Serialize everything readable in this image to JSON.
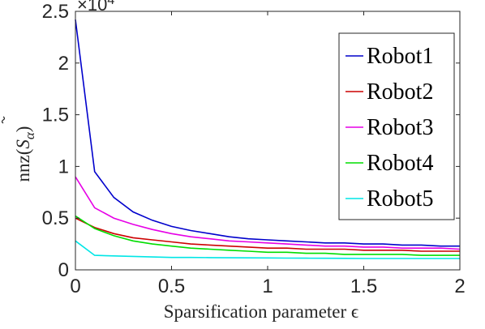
{
  "chart_data": {
    "type": "line",
    "title": "",
    "xlabel": "Sparsification parameter ϵ",
    "ylabel_main": "nnz(",
    "ylabel_symbol": "S",
    "ylabel_subscript": "α",
    "ylabel_close": ")",
    "y_multiplier": "×10",
    "y_multiplier_exponent": "4",
    "xlim": [
      0,
      2
    ],
    "ylim": [
      0,
      2.5
    ],
    "xticks": [
      0,
      0.5,
      1,
      1.5,
      2
    ],
    "xtick_labels": [
      "0",
      "0.5",
      "1",
      "1.5",
      "2"
    ],
    "yticks": [
      0,
      0.5,
      1,
      1.5,
      2,
      2.5
    ],
    "ytick_labels": [
      "0",
      "0.5",
      "1",
      "1.5",
      "2",
      "2.5"
    ],
    "grid": false,
    "legend_position": "top-right",
    "x": [
      0,
      0.1,
      0.2,
      0.3,
      0.4,
      0.5,
      0.6,
      0.7,
      0.8,
      0.9,
      1.0,
      1.1,
      1.2,
      1.3,
      1.4,
      1.5,
      1.6,
      1.7,
      1.8,
      1.9,
      2.0
    ],
    "series": [
      {
        "name": "Robot1",
        "color": "#0000cc",
        "values": [
          2.42,
          0.95,
          0.7,
          0.56,
          0.48,
          0.42,
          0.38,
          0.35,
          0.32,
          0.3,
          0.29,
          0.28,
          0.27,
          0.26,
          0.26,
          0.25,
          0.25,
          0.24,
          0.24,
          0.23,
          0.23
        ]
      },
      {
        "name": "Robot2",
        "color": "#cc0000",
        "values": [
          0.5,
          0.41,
          0.35,
          0.31,
          0.29,
          0.27,
          0.25,
          0.24,
          0.23,
          0.22,
          0.21,
          0.21,
          0.2,
          0.2,
          0.2,
          0.19,
          0.19,
          0.19,
          0.18,
          0.18,
          0.18
        ]
      },
      {
        "name": "Robot3",
        "color": "#e600e6",
        "values": [
          0.9,
          0.6,
          0.5,
          0.44,
          0.39,
          0.35,
          0.32,
          0.3,
          0.28,
          0.27,
          0.26,
          0.25,
          0.24,
          0.23,
          0.23,
          0.22,
          0.22,
          0.21,
          0.21,
          0.21,
          0.2
        ]
      },
      {
        "name": "Robot4",
        "color": "#00dd00",
        "values": [
          0.52,
          0.4,
          0.33,
          0.28,
          0.25,
          0.23,
          0.21,
          0.2,
          0.19,
          0.18,
          0.17,
          0.17,
          0.16,
          0.16,
          0.15,
          0.15,
          0.15,
          0.15,
          0.14,
          0.14,
          0.14
        ]
      },
      {
        "name": "Robot5",
        "color": "#00e6e6",
        "values": [
          0.28,
          0.14,
          0.135,
          0.13,
          0.125,
          0.12,
          0.12,
          0.118,
          0.117,
          0.116,
          0.115,
          0.114,
          0.113,
          0.112,
          0.111,
          0.11,
          0.11,
          0.11,
          0.11,
          0.11,
          0.11
        ]
      }
    ]
  }
}
